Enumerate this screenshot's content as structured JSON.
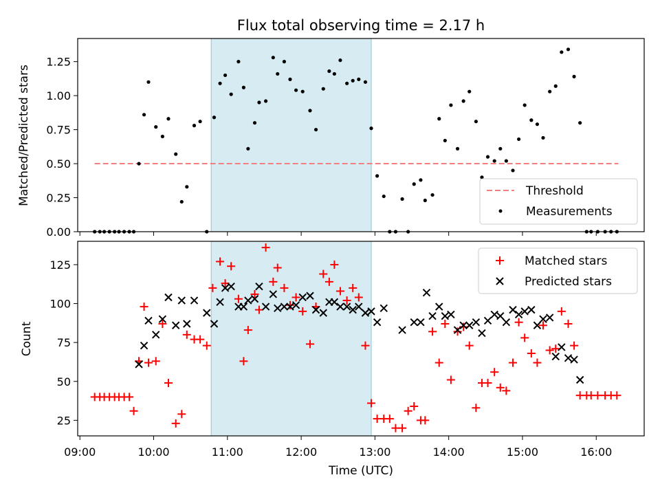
{
  "chart_data": [
    {
      "type": "scatter",
      "panel": "top",
      "title": "Flux total observing time = 2.17 h",
      "ylabel": "Matched/Predicted stars",
      "ylim": [
        0,
        1.42
      ],
      "yticks": [
        0.0,
        0.25,
        0.5,
        0.75,
        1.0,
        1.25
      ],
      "ytick_labels": [
        "0.00",
        "0.25",
        "0.50",
        "0.75",
        "1.00",
        "1.25"
      ],
      "xlim_hours": [
        8.97,
        16.65
      ],
      "shaded_interval_hours": [
        10.78,
        12.95
      ],
      "shade_color": "#add8e6",
      "legend_position": "lower right",
      "threshold": {
        "name": "Threshold",
        "value": 0.5,
        "x_range_hours": [
          9.2,
          16.3
        ],
        "color": "#f08080"
      },
      "series": [
        {
          "name": "Measurements",
          "color": "#000000",
          "x": [
            9.2,
            9.27,
            9.33,
            9.4,
            9.47,
            9.53,
            9.6,
            9.67,
            9.73,
            9.8,
            9.87,
            9.93,
            10.03,
            10.12,
            10.2,
            10.3,
            10.38,
            10.45,
            10.55,
            10.63,
            10.72,
            10.82,
            10.9,
            10.97,
            11.05,
            11.15,
            11.22,
            11.28,
            11.37,
            11.43,
            11.52,
            11.62,
            11.68,
            11.77,
            11.85,
            11.93,
            12.02,
            12.12,
            12.2,
            12.3,
            12.38,
            12.45,
            12.53,
            12.62,
            12.7,
            12.78,
            12.87,
            12.95,
            13.03,
            13.12,
            13.2,
            13.28,
            13.37,
            13.45,
            13.53,
            13.62,
            13.68,
            13.78,
            13.87,
            13.95,
            14.03,
            14.12,
            14.2,
            14.28,
            14.37,
            14.45,
            14.53,
            14.62,
            14.7,
            14.78,
            14.87,
            14.95,
            15.03,
            15.12,
            15.2,
            15.28,
            15.37,
            15.45,
            15.53,
            15.62,
            15.7,
            15.78,
            15.87,
            15.93,
            16.02,
            16.12,
            16.2,
            16.28
          ],
          "y": [
            0.0,
            0.0,
            0.0,
            0.0,
            0.0,
            0.0,
            0.0,
            0.0,
            0.0,
            0.5,
            0.86,
            1.1,
            0.77,
            0.7,
            0.83,
            0.57,
            0.22,
            0.33,
            0.78,
            0.81,
            0.0,
            0.84,
            1.09,
            1.15,
            1.01,
            1.25,
            1.06,
            0.61,
            0.8,
            0.95,
            0.96,
            1.28,
            1.16,
            1.25,
            1.12,
            1.04,
            1.03,
            0.89,
            0.75,
            1.05,
            1.18,
            1.16,
            1.26,
            1.09,
            1.11,
            1.12,
            1.1,
            0.76,
            0.41,
            0.26,
            0.0,
            0.0,
            0.24,
            0.0,
            0.35,
            0.38,
            0.23,
            0.27,
            0.83,
            0.67,
            0.93,
            0.61,
            0.96,
            1.03,
            0.81,
            0.4,
            0.55,
            0.52,
            0.61,
            0.52,
            0.45,
            0.68,
            0.93,
            0.82,
            0.79,
            0.69,
            1.03,
            1.07,
            1.32,
            1.34,
            1.14,
            0.8,
            0.0,
            0.0,
            0.0,
            0.0,
            0.0,
            0.0
          ]
        }
      ]
    },
    {
      "type": "scatter",
      "panel": "bottom",
      "xlabel": "Time (UTC)",
      "ylabel": "Count",
      "ylim": [
        15,
        140
      ],
      "yticks": [
        25,
        50,
        75,
        100,
        125
      ],
      "ytick_labels": [
        "25",
        "50",
        "75",
        "100",
        "125"
      ],
      "xlim_hours": [
        8.97,
        16.65
      ],
      "xticks_hours": [
        9,
        10,
        11,
        12,
        13,
        14,
        15,
        16
      ],
      "xtick_labels": [
        "09:00",
        "10:00",
        "11:00",
        "12:00",
        "13:00",
        "14:00",
        "15:00",
        "16:00"
      ],
      "shaded_interval_hours": [
        10.78,
        12.95
      ],
      "shade_color": "#add8e6",
      "legend_position": "upper right",
      "series": [
        {
          "name": "Matched stars",
          "marker": "plus",
          "color": "#ff0000",
          "x": [
            9.2,
            9.27,
            9.33,
            9.4,
            9.47,
            9.53,
            9.6,
            9.67,
            9.73,
            9.8,
            9.87,
            9.93,
            10.03,
            10.12,
            10.2,
            10.3,
            10.38,
            10.45,
            10.55,
            10.63,
            10.72,
            10.8,
            10.9,
            10.97,
            11.05,
            11.15,
            11.22,
            11.28,
            11.37,
            11.43,
            11.52,
            11.62,
            11.68,
            11.77,
            11.85,
            11.93,
            12.02,
            12.12,
            12.2,
            12.3,
            12.38,
            12.45,
            12.53,
            12.62,
            12.7,
            12.78,
            12.87,
            12.95,
            13.03,
            13.12,
            13.2,
            13.28,
            13.37,
            13.45,
            13.53,
            13.62,
            13.68,
            13.78,
            13.87,
            13.95,
            14.03,
            14.12,
            14.2,
            14.28,
            14.37,
            14.45,
            14.53,
            14.62,
            14.7,
            14.78,
            14.87,
            14.95,
            15.03,
            15.12,
            15.2,
            15.28,
            15.37,
            15.45,
            15.53,
            15.62,
            15.7,
            15.78,
            15.87,
            15.93,
            16.02,
            16.12,
            16.2,
            16.28
          ],
          "y": [
            40,
            40,
            40,
            40,
            40,
            40,
            40,
            40,
            31,
            63,
            98,
            62,
            63,
            87,
            49,
            23,
            29,
            80,
            77,
            77,
            73,
            110,
            127,
            113,
            124,
            103,
            63,
            83,
            106,
            96,
            136,
            114,
            123,
            110,
            99,
            104,
            95,
            74,
            98,
            119,
            114,
            125,
            108,
            102,
            110,
            104,
            73,
            36,
            26,
            26,
            26,
            20,
            20,
            31,
            34,
            25,
            25,
            82,
            62,
            87,
            51,
            82,
            85,
            73,
            33,
            49,
            49,
            56,
            46,
            44,
            62,
            88,
            78,
            68,
            62,
            86,
            70,
            71,
            95,
            87,
            73,
            41,
            41,
            41,
            41,
            41,
            41,
            41
          ]
        },
        {
          "name": "Predicted stars",
          "marker": "x",
          "color": "#000000",
          "x": [
            9.8,
            9.87,
            9.93,
            10.03,
            10.12,
            10.2,
            10.3,
            10.38,
            10.45,
            10.55,
            10.72,
            10.82,
            10.9,
            10.97,
            11.05,
            11.15,
            11.22,
            11.28,
            11.37,
            11.43,
            11.52,
            11.62,
            11.68,
            11.77,
            11.85,
            11.93,
            12.02,
            12.12,
            12.2,
            12.3,
            12.38,
            12.45,
            12.53,
            12.62,
            12.7,
            12.78,
            12.87,
            12.95,
            13.03,
            13.12,
            13.37,
            13.53,
            13.62,
            13.7,
            13.78,
            13.87,
            13.95,
            14.03,
            14.12,
            14.2,
            14.28,
            14.37,
            14.45,
            14.53,
            14.62,
            14.7,
            14.78,
            14.87,
            14.95,
            15.03,
            15.12,
            15.2,
            15.28,
            15.37,
            15.45,
            15.53,
            15.62,
            15.7,
            15.78
          ],
          "y": [
            61,
            73,
            89,
            80,
            90,
            104,
            86,
            102,
            87,
            102,
            94,
            87,
            101,
            110,
            111,
            98,
            98,
            102,
            103,
            111,
            98,
            106,
            97,
            98,
            98,
            99,
            104,
            105,
            96,
            94,
            101,
            101,
            98,
            98,
            96,
            98,
            94,
            95,
            88,
            97,
            83,
            88,
            88,
            107,
            92,
            98,
            92,
            93,
            83,
            86,
            86,
            88,
            81,
            89,
            93,
            92,
            88,
            96,
            93,
            95,
            96,
            86,
            90,
            91,
            66,
            72,
            65,
            64,
            51
          ]
        }
      ]
    }
  ]
}
